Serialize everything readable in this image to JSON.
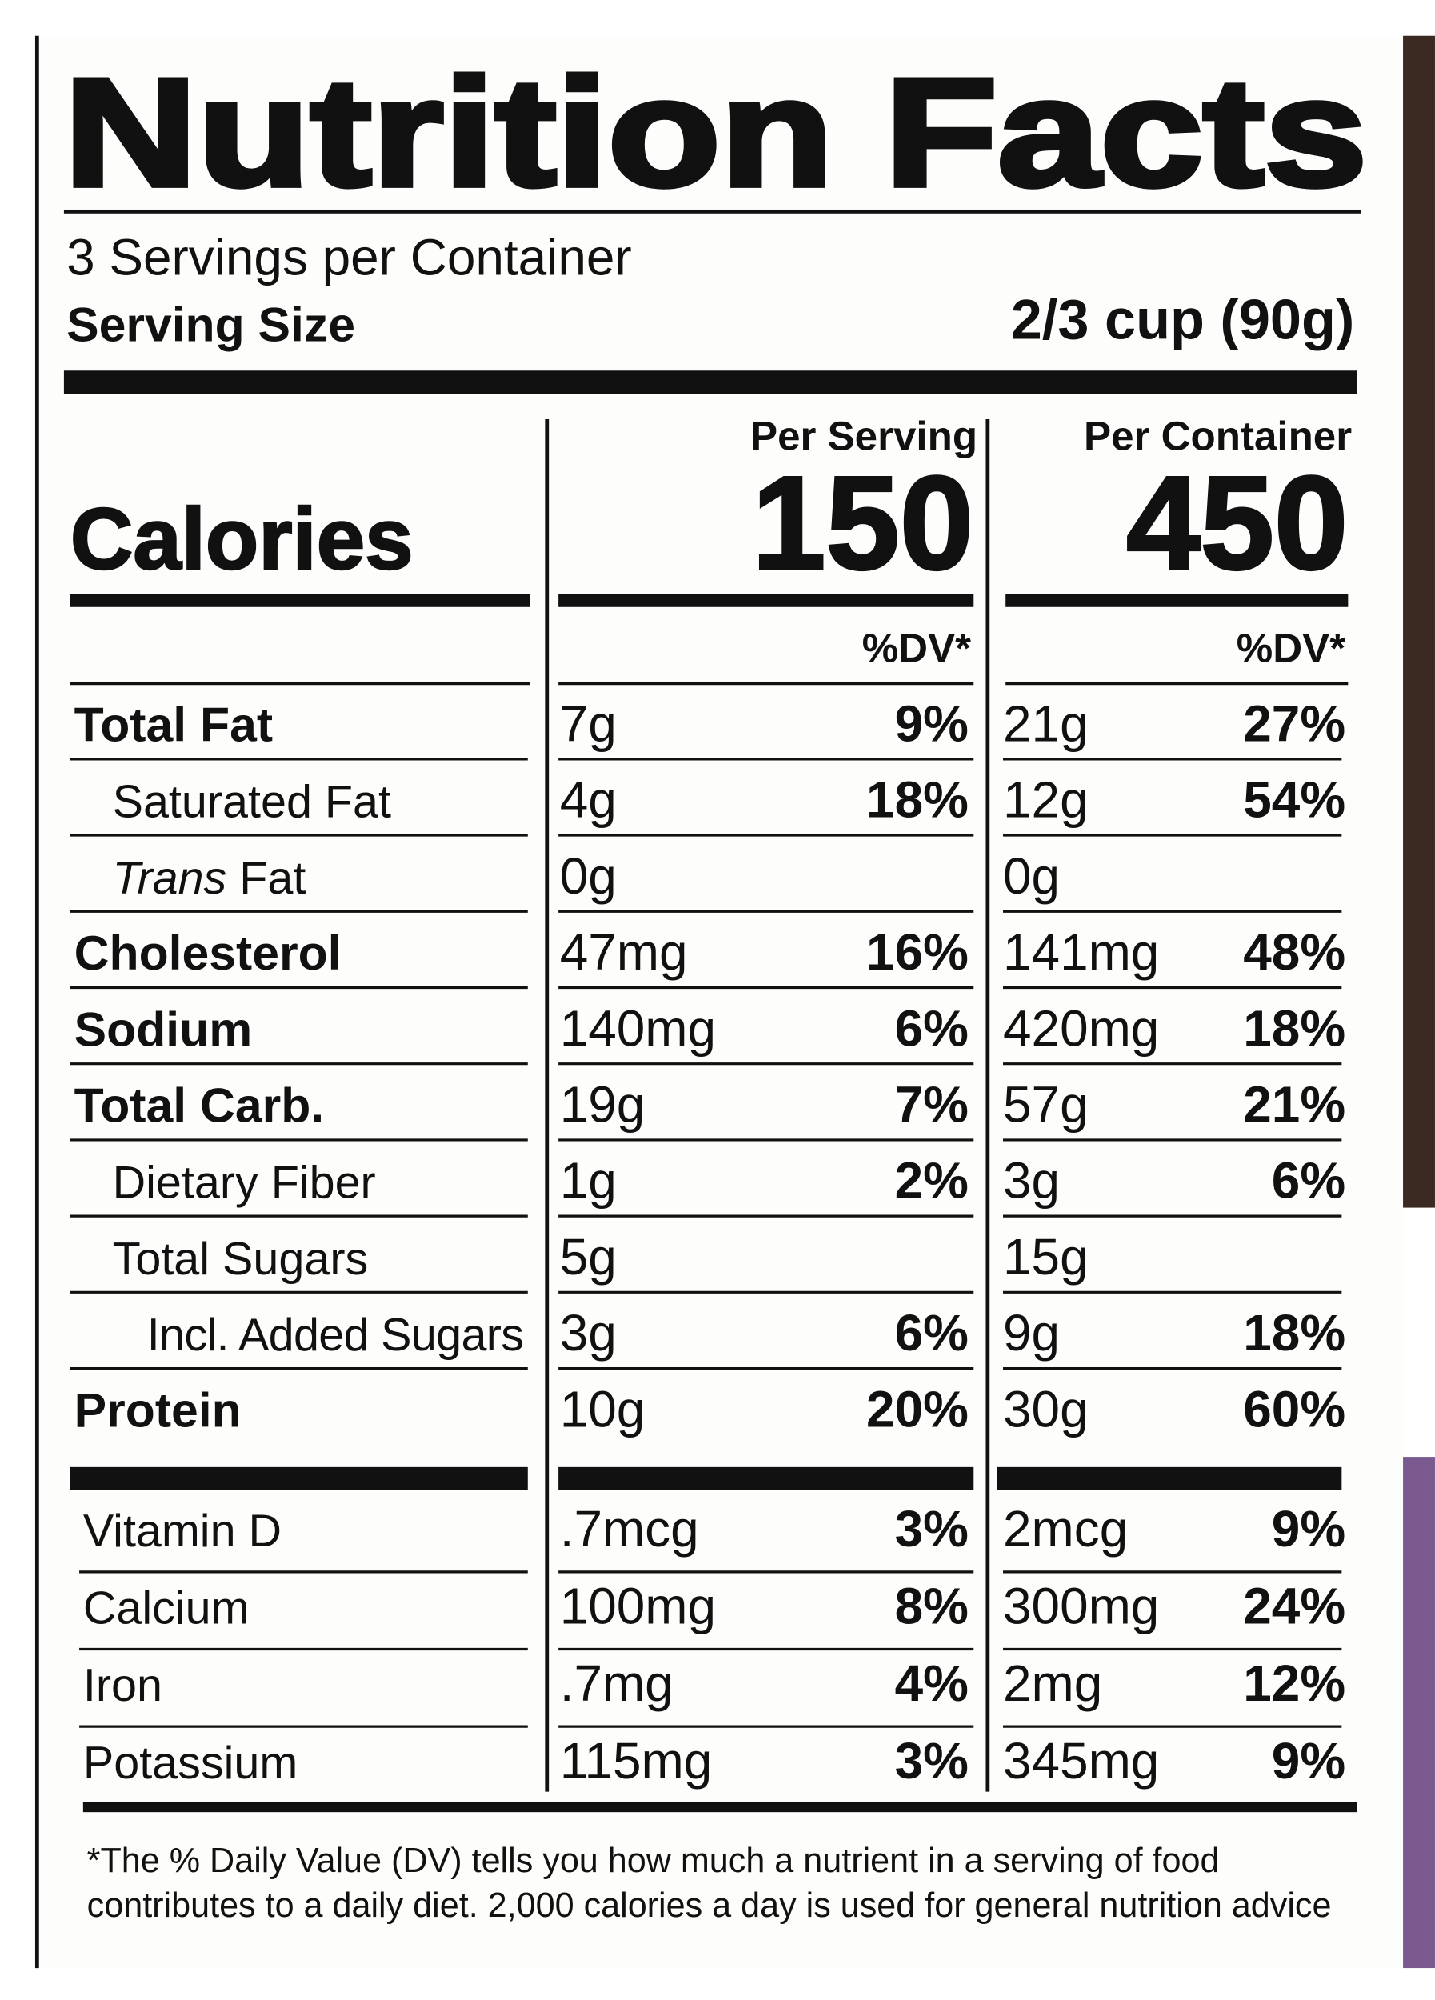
{
  "title": "Nutrition Facts",
  "servings_per_container": "3 Servings per Container",
  "serving_size_label": "Serving Size",
  "serving_size": "2/3 cup (90g)",
  "columns": [
    "Per Serving",
    "Per Container"
  ],
  "calories_label": "Calories",
  "calories": [
    "150",
    "450"
  ],
  "dv_headers": [
    "%DV*",
    "%DV*"
  ],
  "rows": [
    {
      "name": "Total Fat",
      "bold": true,
      "indent": 0,
      "serving": [
        "7g",
        "9%"
      ],
      "container": [
        "21g",
        "27%"
      ]
    },
    {
      "name": "Saturated Fat",
      "bold": false,
      "indent": 1,
      "serving": [
        "4g",
        "18%"
      ],
      "container": [
        "12g",
        "54%"
      ]
    },
    {
      "name_italic": "Trans",
      "name": "Fat",
      "bold": false,
      "indent": 1,
      "serving": [
        "0g"
      ],
      "container": [
        "0g"
      ]
    },
    {
      "name": "Cholesterol",
      "bold": true,
      "indent": 0,
      "serving": [
        "47mg",
        "16%"
      ],
      "container": [
        "141mg",
        "48%"
      ]
    },
    {
      "name": "Sodium",
      "bold": true,
      "indent": 0,
      "serving": [
        "140mg",
        "6%"
      ],
      "container": [
        "420mg",
        "18%"
      ]
    },
    {
      "name": "Total Carb.",
      "bold": true,
      "indent": 0,
      "serving": [
        "19g",
        "7%"
      ],
      "container": [
        "57g",
        "21%"
      ]
    },
    {
      "name": "Dietary Fiber",
      "bold": false,
      "indent": 1,
      "serving": [
        "1g",
        "2%"
      ],
      "container": [
        "3g",
        "6%"
      ]
    },
    {
      "name": "Total Sugars",
      "bold": false,
      "indent": 1,
      "serving": [
        "5g"
      ],
      "container": [
        "15g"
      ]
    },
    {
      "name": "Incl. Added Sugars",
      "bold": false,
      "indent": 2,
      "serving": [
        "3g",
        "6%"
      ],
      "container": [
        "9g",
        "18%"
      ]
    },
    {
      "name": "Protein",
      "bold": true,
      "indent": 0,
      "serving": [
        "10g",
        "20%"
      ],
      "container": [
        "30g",
        "60%"
      ]
    }
  ],
  "vitamins": [
    {
      "name": "Vitamin D",
      "serving": [
        ".7mcg",
        "3%"
      ],
      "container": [
        "2mcg",
        "9%"
      ]
    },
    {
      "name": "Calcium",
      "serving": [
        "100mg",
        "8%"
      ],
      "container": [
        "300mg",
        "24%"
      ]
    },
    {
      "name": "Iron",
      "serving": [
        ".7mg",
        "4%"
      ],
      "container": [
        "2mg",
        "12%"
      ]
    },
    {
      "name": "Potassium",
      "serving": [
        "115mg",
        "3%"
      ],
      "container": [
        "345mg",
        "9%"
      ]
    }
  ],
  "footnote": [
    "*The % Daily Value (DV) tells you how much a nutrient in a serving of food",
    "contributes to a daily diet. 2,000 calories a day is used for general nutrition advice"
  ]
}
